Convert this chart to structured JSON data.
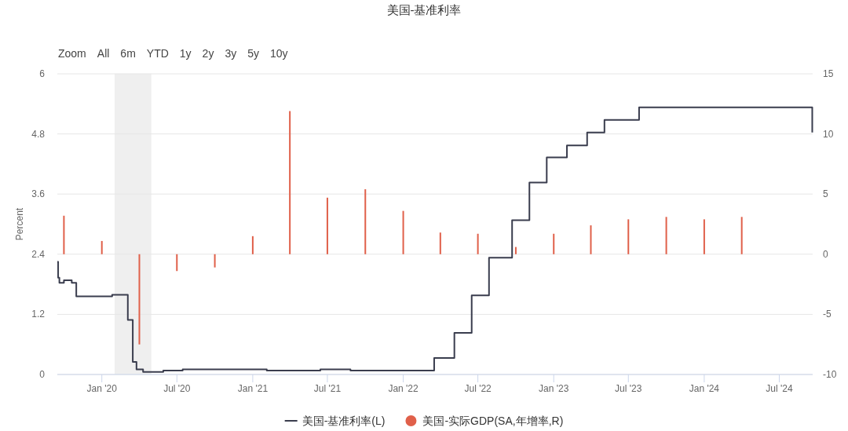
{
  "chart_data": {
    "type": "step",
    "title": "美国-基准利率",
    "ylabel": "Percent",
    "annotations": [
      "Zoom",
      "All",
      "6m",
      "YTD",
      "1y",
      "2y",
      "3y",
      "5y",
      "10y"
    ],
    "xlim": [
      "2019-09-15",
      "2024-09-20"
    ],
    "xticks": [
      {
        "value": "2020-01-01",
        "label": "Jan '20"
      },
      {
        "value": "2020-07-01",
        "label": "Jul '20"
      },
      {
        "value": "2021-01-01",
        "label": "Jan '21"
      },
      {
        "value": "2021-07-01",
        "label": "Jul '21"
      },
      {
        "value": "2022-01-01",
        "label": "Jan '22"
      },
      {
        "value": "2022-07-01",
        "label": "Jul '22"
      },
      {
        "value": "2023-01-01",
        "label": "Jan '23"
      },
      {
        "value": "2023-07-01",
        "label": "Jul '23"
      },
      {
        "value": "2024-01-01",
        "label": "Jan '24"
      },
      {
        "value": "2024-07-01",
        "label": "Jul '24"
      }
    ],
    "ylim": [
      0,
      6
    ],
    "yticks": [
      0,
      1.2,
      2.4,
      3.6,
      4.8,
      6
    ],
    "y2lim": [
      -10,
      15
    ],
    "y2ticks": [
      -10,
      -5,
      0,
      5,
      10,
      15
    ],
    "grid": "y",
    "legend": "bottom",
    "bands": [
      {
        "axis": "x",
        "from": "2020-02-01",
        "to": "2020-04-30",
        "color": "#efefef"
      }
    ],
    "series": [
      {
        "name": "美国-基准利率(L)",
        "color": "#3a3d4e",
        "x": [
          "2019-09-15",
          "2019-09-17",
          "2019-09-20",
          "2019-10-01",
          "2019-10-20",
          "2019-10-31",
          "2020-01-26",
          "2020-03-04",
          "2020-03-16",
          "2020-03-25",
          "2020-04-10",
          "2020-05-29",
          "2020-07-15",
          "2021-02-04",
          "2021-06-14",
          "2021-08-26",
          "2022-03-17",
          "2022-05-05",
          "2022-06-16",
          "2022-07-28",
          "2022-09-22",
          "2022-11-03",
          "2022-12-15",
          "2023-02-02",
          "2023-03-23",
          "2023-05-04",
          "2023-07-27",
          "2024-09-18",
          "2024-09-19"
        ],
        "values": [
          2.25,
          1.93,
          1.83,
          1.88,
          1.83,
          1.56,
          1.59,
          1.09,
          0.25,
          0.1,
          0.05,
          0.08,
          0.1,
          0.08,
          0.1,
          0.08,
          0.33,
          0.83,
          1.58,
          2.33,
          3.08,
          3.83,
          4.33,
          4.57,
          4.83,
          5.08,
          5.33,
          5.33,
          4.83
        ]
      },
      {
        "name": "美国-实际GDP(SA,年增率,R)",
        "type": "bar",
        "axis": "y2",
        "color": "#e0604a",
        "x": [
          "2019-10-01",
          "2020-01-01",
          "2020-04-01",
          "2020-07-01",
          "2020-10-01",
          "2021-01-01",
          "2021-04-01",
          "2021-07-01",
          "2021-10-01",
          "2022-01-01",
          "2022-04-01",
          "2022-07-01",
          "2022-10-01",
          "2023-01-01",
          "2023-04-01",
          "2023-07-01",
          "2023-10-01",
          "2024-01-01",
          "2024-04-01"
        ],
        "values": [
          3.2,
          1.1,
          -7.5,
          -1.4,
          -1.1,
          1.5,
          11.9,
          4.7,
          5.4,
          3.6,
          1.8,
          1.7,
          0.6,
          1.7,
          2.4,
          2.9,
          3.1,
          2.9,
          3.1
        ]
      }
    ]
  }
}
